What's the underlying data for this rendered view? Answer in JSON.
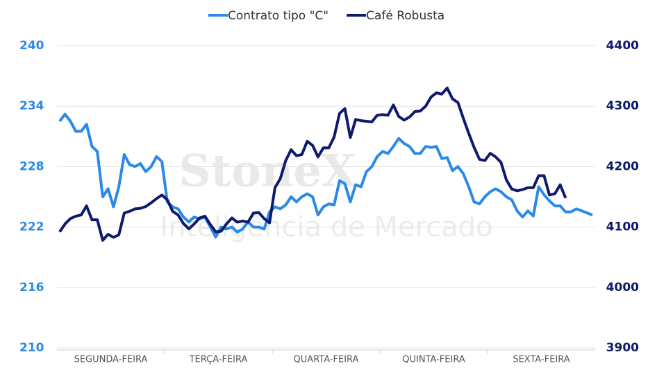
{
  "chart_data": {
    "type": "line",
    "watermark": "StoneX",
    "watermark_subtitle": "Inteligência de Mercado",
    "categories": [
      "SEGUNDA-FEIRA",
      "TERÇA-FEIRA",
      "QUARTA-FEIRA",
      "QUINTA-FEIRA",
      "SEXTA-FEIRA"
    ],
    "ylim": [
      210,
      240
    ],
    "yticks": [
      210,
      216,
      222,
      228,
      234,
      240
    ],
    "y2lim": [
      3900,
      4400
    ],
    "y2ticks": [
      3900,
      4000,
      4100,
      4200,
      4300,
      4400
    ],
    "grid": true,
    "legend": "top",
    "series": [
      {
        "name": "Contrato tipo \"C\"",
        "color": "#2a8ae6",
        "axis": "y",
        "values": [
          [
            232.5,
            233.2,
            232.5,
            231.5,
            231.5,
            232.2,
            230,
            229.5,
            225,
            225.8,
            224,
            226,
            229.2,
            228.2,
            228,
            228.3,
            227.5,
            228,
            229,
            228.5
          ],
          [
            224.5,
            224,
            223.8,
            223,
            222.5,
            223,
            222.8,
            223,
            222,
            221,
            222,
            221.8,
            222,
            221.5,
            221.8,
            222.5,
            222,
            222,
            221.8,
            223.5
          ],
          [
            224,
            223.8,
            224.2,
            225,
            224.5,
            225,
            225.3,
            225,
            223.2,
            224,
            224.3,
            224.2,
            226.6,
            226.3,
            224.5,
            226.2,
            226,
            227.5,
            228,
            229
          ],
          [
            229.5,
            229.3,
            230,
            230.8,
            230.3,
            230,
            229.3,
            229.3,
            230,
            229.9,
            230,
            228.8,
            228.9,
            227.6,
            228,
            227.3,
            226,
            224.5,
            224.3,
            225
          ],
          [
            225.5,
            225.8,
            225.5,
            225,
            224.7,
            223.6,
            223,
            223.6,
            223.1,
            226,
            225.2,
            224.6,
            224.1,
            224.1,
            223.5,
            223.5,
            223.8,
            223.6,
            223.4,
            223.2
          ]
        ]
      },
      {
        "name": "Café Robusta",
        "color": "#0e1a6b",
        "axis": "y2",
        "values": [
          [
            4092,
            4105,
            4114,
            4118,
            4120,
            4135,
            4112,
            4112,
            4078,
            4088,
            4083,
            4087,
            4123,
            4126,
            4130,
            4131,
            4134,
            4140,
            4147,
            4153
          ],
          [
            4145,
            4126,
            4120,
            4106,
            4097,
            4105,
            4115,
            4118,
            4104,
            4092,
            4093,
            4105,
            4115,
            4108,
            4110,
            4108,
            4123,
            4124,
            4114,
            4107
          ],
          [
            4165,
            4180,
            4210,
            4228,
            4218,
            4220,
            4242,
            4235,
            4216,
            4231,
            4231,
            4249,
            4288,
            4296,
            4248,
            4278,
            4276,
            4275,
            4274,
            4285
          ],
          [
            4286,
            4285,
            4302,
            4283,
            4277,
            4282,
            4291,
            4292,
            4300,
            4315,
            4322,
            4320,
            4330,
            4312,
            4306,
            4280,
            4255,
            4232,
            4212,
            4210
          ],
          [
            4222,
            4216,
            4207,
            4178,
            4163,
            4160,
            4162,
            4165,
            4165,
            4185,
            4185,
            4153,
            4155,
            4170,
            4148,
            null,
            null,
            null,
            null,
            null
          ]
        ]
      }
    ]
  }
}
